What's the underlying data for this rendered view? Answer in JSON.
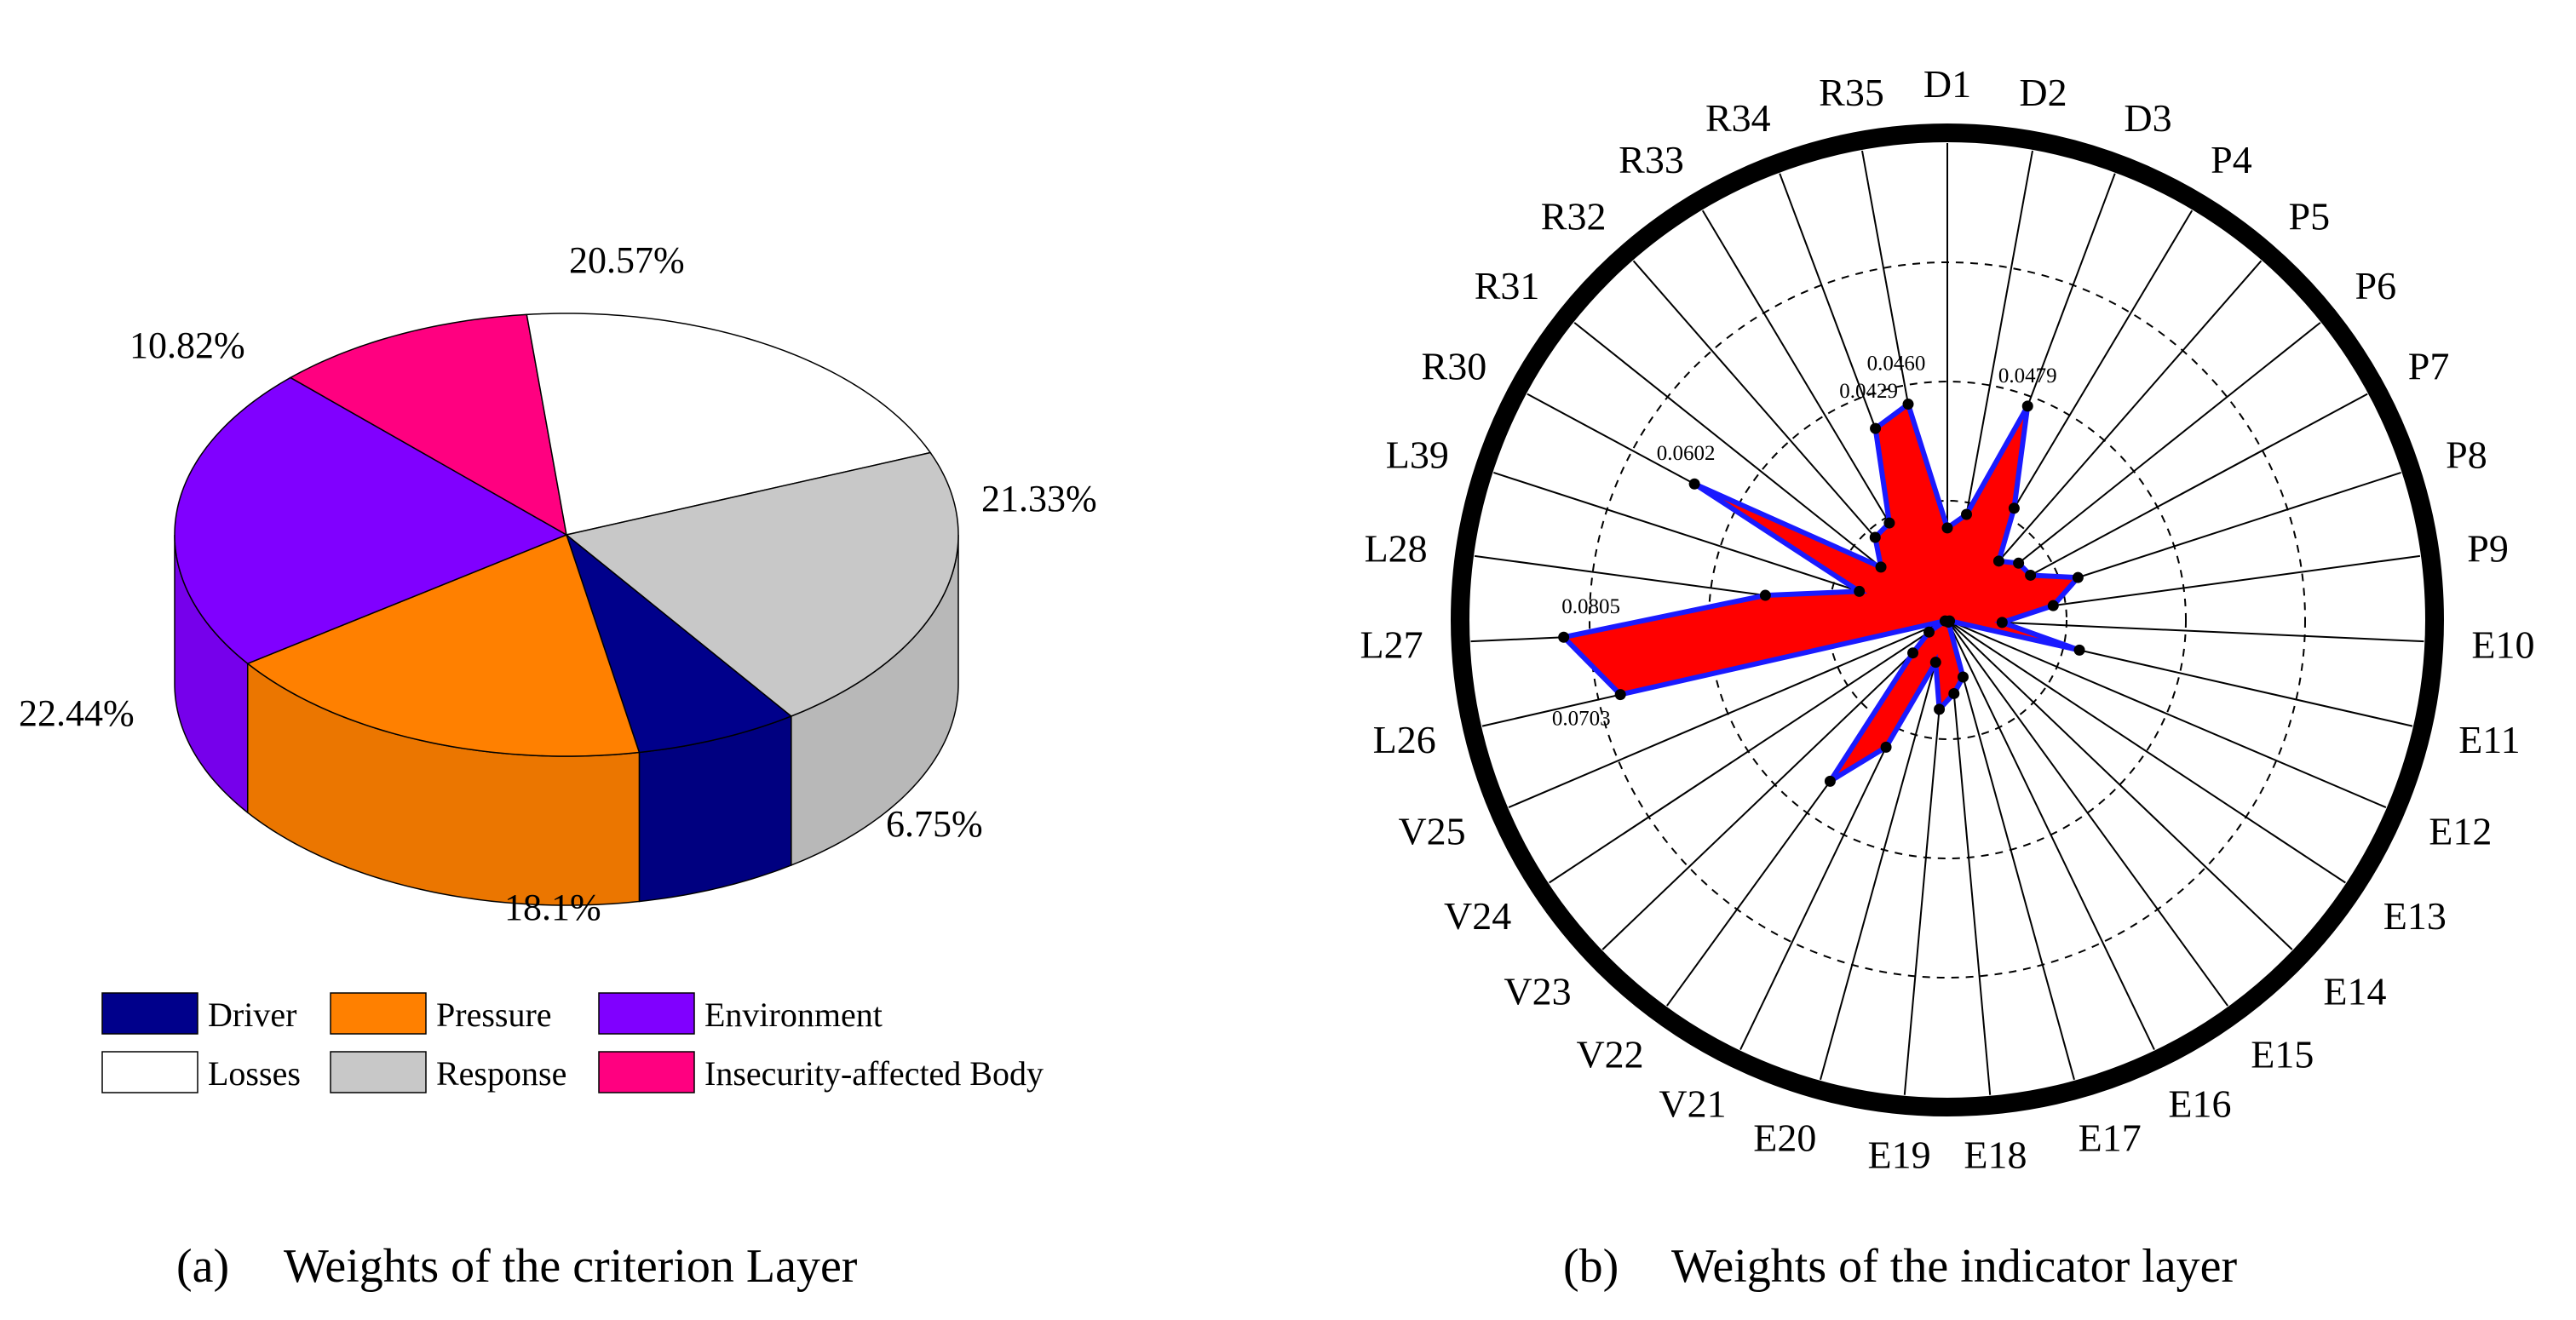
{
  "chart_data": [
    {
      "type": "pie",
      "title": "Weights of the criterion Layer",
      "caption_marker": "(a)",
      "caption_text": "Weights of the criterion Layer",
      "slices": [
        {
          "name": "Driver",
          "value": 6.75,
          "label": "6.75%",
          "color": "#00008B"
        },
        {
          "name": "Pressure",
          "value": 18.1,
          "label": "18.1%",
          "color": "#FF8000"
        },
        {
          "name": "Environment",
          "value": 22.44,
          "label": "22.44%",
          "color": "#8000FF"
        },
        {
          "name": "Insecurity-affected Body",
          "value": 10.82,
          "label": "10.82%",
          "color": "#FF0080"
        },
        {
          "name": "Losses",
          "value": 20.57,
          "label": "20.57%",
          "color": "#FFFFFF"
        },
        {
          "name": "Response",
          "value": 21.33,
          "label": "21.33%",
          "color": "#C8C8C8"
        }
      ],
      "legend": [
        {
          "name": "Driver",
          "color": "#00008B"
        },
        {
          "name": "Pressure",
          "color": "#FF8000"
        },
        {
          "name": "Environment",
          "color": "#8000FF"
        },
        {
          "name": "Losses",
          "color": "#FFFFFF"
        },
        {
          "name": "Response",
          "color": "#C8C8C8"
        },
        {
          "name": "Insecurity-affected Body",
          "color": "#FF0080"
        }
      ]
    },
    {
      "type": "radar",
      "title": "Weights of the indicator layer",
      "caption_marker": "(b)",
      "caption_text": "Weights of the indicator layer",
      "fill_color": "#FF0000",
      "line_color": "#1A1AFF",
      "rmax": 0.1,
      "gridlines": [
        0.025,
        0.05,
        0.075
      ],
      "categories": [
        "D1",
        "D2",
        "D3",
        "P4",
        "P5",
        "P6",
        "P7",
        "P8",
        "P9",
        "E10",
        "E11",
        "E12",
        "E13",
        "E14",
        "E15",
        "E16",
        "E17",
        "E18",
        "E19",
        "E20",
        "V21",
        "V22",
        "V23",
        "V24",
        "V25",
        "L26",
        "L27",
        "L28",
        "L39",
        "R30",
        "R31",
        "R32",
        "R33",
        "R34",
        "R35"
      ],
      "values": [
        0.0193,
        0.0225,
        0.0479,
        0.0273,
        0.0164,
        0.0191,
        0.0198,
        0.0288,
        0.0224,
        0.0115,
        0.0284,
        0.0005,
        0.0005,
        0.0005,
        0.0005,
        0.0005,
        0.0124,
        0.0155,
        0.0188,
        0.0092,
        0.0296,
        0.0418,
        0.01,
        0.0046,
        0.0005,
        0.0703,
        0.0805,
        0.0385,
        0.0194,
        0.0602,
        0.0178,
        0.023,
        0.0237,
        0.0429,
        0.046
      ],
      "value_labels": [
        {
          "index": 2,
          "text": "0.0479"
        },
        {
          "index": 25,
          "text": "0.0703"
        },
        {
          "index": 26,
          "text": "0.0805"
        },
        {
          "index": 29,
          "text": "0.0602"
        },
        {
          "index": 33,
          "text": "0.0429"
        },
        {
          "index": 34,
          "text": "0.0460"
        }
      ]
    }
  ]
}
